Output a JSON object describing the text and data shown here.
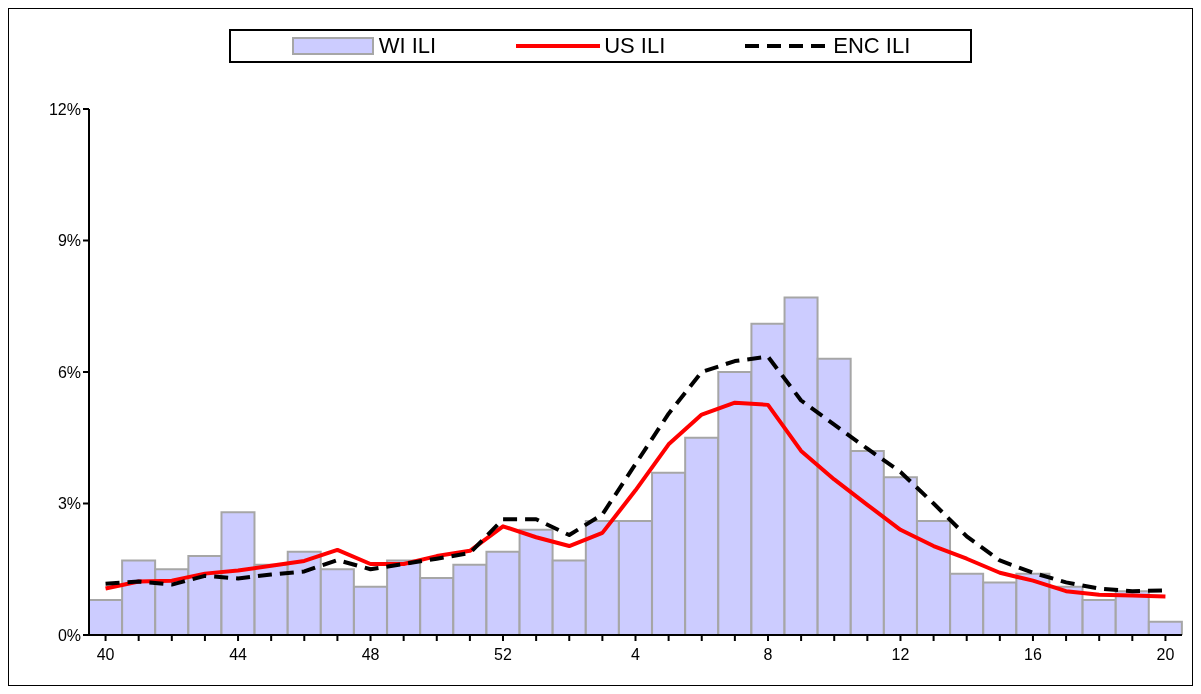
{
  "chart_data": {
    "type": "bar",
    "categories": [
      "40",
      null,
      null,
      null,
      "44",
      null,
      null,
      null,
      "48",
      null,
      null,
      null,
      "52",
      null,
      null,
      null,
      "4",
      null,
      null,
      null,
      "8",
      null,
      null,
      null,
      "12",
      null,
      null,
      null,
      "16",
      null,
      null,
      null,
      "20"
    ],
    "series": [
      {
        "name": "WI ILI",
        "color": "#ccccff",
        "values": [
          0.8,
          1.7,
          1.5,
          1.8,
          2.8,
          1.6,
          1.9,
          1.5,
          1.1,
          1.7,
          1.3,
          1.6,
          1.9,
          2.4,
          1.7,
          2.6,
          2.6,
          3.7,
          4.5,
          6.0,
          7.1,
          7.7,
          6.3,
          4.2,
          3.6,
          2.6,
          1.4,
          1.2,
          1.4,
          1.1,
          0.8,
          1.0,
          0.3
        ]
      },
      {
        "name": "US ILI",
        "type": "line",
        "color": "#ff0000",
        "line_style": "solid",
        "values": [
          1.06,
          1.22,
          1.24,
          1.4,
          1.47,
          1.58,
          1.69,
          1.94,
          1.62,
          1.62,
          1.8,
          1.92,
          2.48,
          2.23,
          2.03,
          2.33,
          3.3,
          4.35,
          5.03,
          5.3,
          5.25,
          4.2,
          3.55,
          2.97,
          2.4,
          2.03,
          1.74,
          1.42,
          1.24,
          1.0,
          0.92,
          0.9,
          0.88
        ]
      },
      {
        "name": "ENC ILI",
        "type": "line",
        "color": "#000000",
        "line_style": "dashed",
        "values": [
          1.17,
          1.22,
          1.15,
          1.35,
          1.29,
          1.38,
          1.45,
          1.71,
          1.5,
          1.62,
          1.74,
          1.87,
          2.64,
          2.64,
          2.28,
          2.75,
          3.9,
          5.05,
          6.0,
          6.25,
          6.35,
          5.35,
          4.8,
          4.25,
          3.72,
          3.0,
          2.25,
          1.7,
          1.42,
          1.2,
          1.06,
          1.0,
          1.02
        ]
      }
    ],
    "ylim": [
      0,
      12
    ],
    "yticks": [
      {
        "value": 0,
        "label": "0%"
      },
      {
        "value": 3,
        "label": "3%"
      },
      {
        "value": 6,
        "label": "6%"
      },
      {
        "value": 9,
        "label": "9%"
      },
      {
        "value": 12,
        "label": "12%"
      }
    ],
    "grid": false,
    "legend": "top",
    "marker": "none"
  }
}
